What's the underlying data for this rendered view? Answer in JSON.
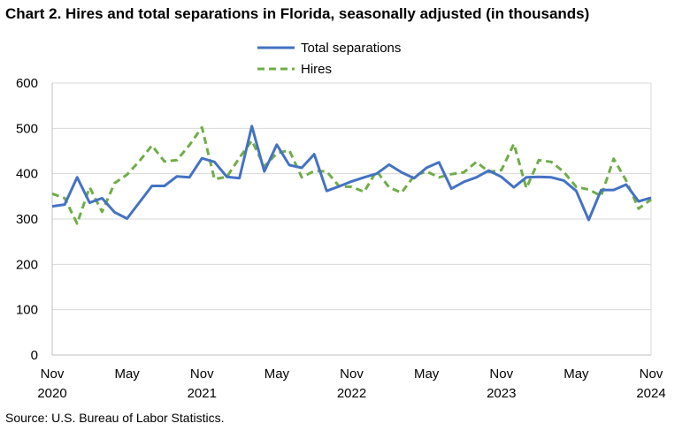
{
  "title": "Chart 2. Hires and total separations in Florida, seasonally adjusted (in thousands)",
  "source": "Source: U.S. Bureau of Labor Statistics.",
  "colors": {
    "separations": "#4472c4",
    "hires": "#70ad47",
    "grid": "#d9d9d9",
    "axis": "#bfbfbf"
  },
  "chart_data": {
    "type": "line",
    "title": "Chart 2. Hires and total separations in Florida, seasonally adjusted (in thousands)",
    "xlabel": "",
    "ylabel": "",
    "ylim": [
      0,
      600
    ],
    "yticks": [
      "0",
      "100",
      "200",
      "300",
      "400",
      "500",
      "600"
    ],
    "grid": true,
    "legend_placement": "top-center",
    "x_tick_labels": [
      {
        "month": "Nov",
        "year": "2020"
      },
      {
        "month": "May",
        "year": ""
      },
      {
        "month": "Nov",
        "year": "2021"
      },
      {
        "month": "May",
        "year": ""
      },
      {
        "month": "Nov",
        "year": "2022"
      },
      {
        "month": "May",
        "year": ""
      },
      {
        "month": "Nov",
        "year": "2023"
      },
      {
        "month": "May",
        "year": ""
      },
      {
        "month": "Nov",
        "year": "2024"
      }
    ],
    "x": [
      "2020-11",
      "2020-12",
      "2021-01",
      "2021-02",
      "2021-03",
      "2021-04",
      "2021-05",
      "2021-06",
      "2021-07",
      "2021-08",
      "2021-09",
      "2021-10",
      "2021-11",
      "2021-12",
      "2022-01",
      "2022-02",
      "2022-03",
      "2022-04",
      "2022-05",
      "2022-06",
      "2022-07",
      "2022-08",
      "2022-09",
      "2022-10",
      "2022-11",
      "2022-12",
      "2023-01",
      "2023-02",
      "2023-03",
      "2023-04",
      "2023-05",
      "2023-06",
      "2023-07",
      "2023-08",
      "2023-09",
      "2023-10",
      "2023-11",
      "2023-12",
      "2024-01",
      "2024-02",
      "2024-03",
      "2024-04",
      "2024-05",
      "2024-06",
      "2024-07",
      "2024-08",
      "2024-09",
      "2024-10",
      "2024-11"
    ],
    "series": [
      {
        "name": "Total separations",
        "style": "solid",
        "values": [
          328,
          332,
          392,
          336,
          346,
          315,
          301,
          337,
          373,
          373,
          394,
          392,
          434,
          426,
          393,
          390,
          505,
          405,
          464,
          419,
          413,
          443,
          362,
          372,
          383,
          392,
          400,
          420,
          403,
          390,
          413,
          425,
          367,
          382,
          392,
          407,
          393,
          370,
          392,
          393,
          392,
          385,
          362,
          298,
          364,
          364,
          376,
          339,
          347
        ]
      },
      {
        "name": "Hires",
        "style": "dashed",
        "values": [
          356,
          346,
          290,
          370,
          316,
          379,
          398,
          428,
          462,
          427,
          430,
          463,
          502,
          388,
          393,
          435,
          473,
          416,
          445,
          452,
          392,
          406,
          405,
          372,
          371,
          360,
          406,
          370,
          358,
          395,
          405,
          392,
          399,
          403,
          426,
          404,
          408,
          466,
          368,
          430,
          426,
          404,
          371,
          365,
          351,
          433,
          385,
          323,
          343
        ]
      }
    ]
  }
}
